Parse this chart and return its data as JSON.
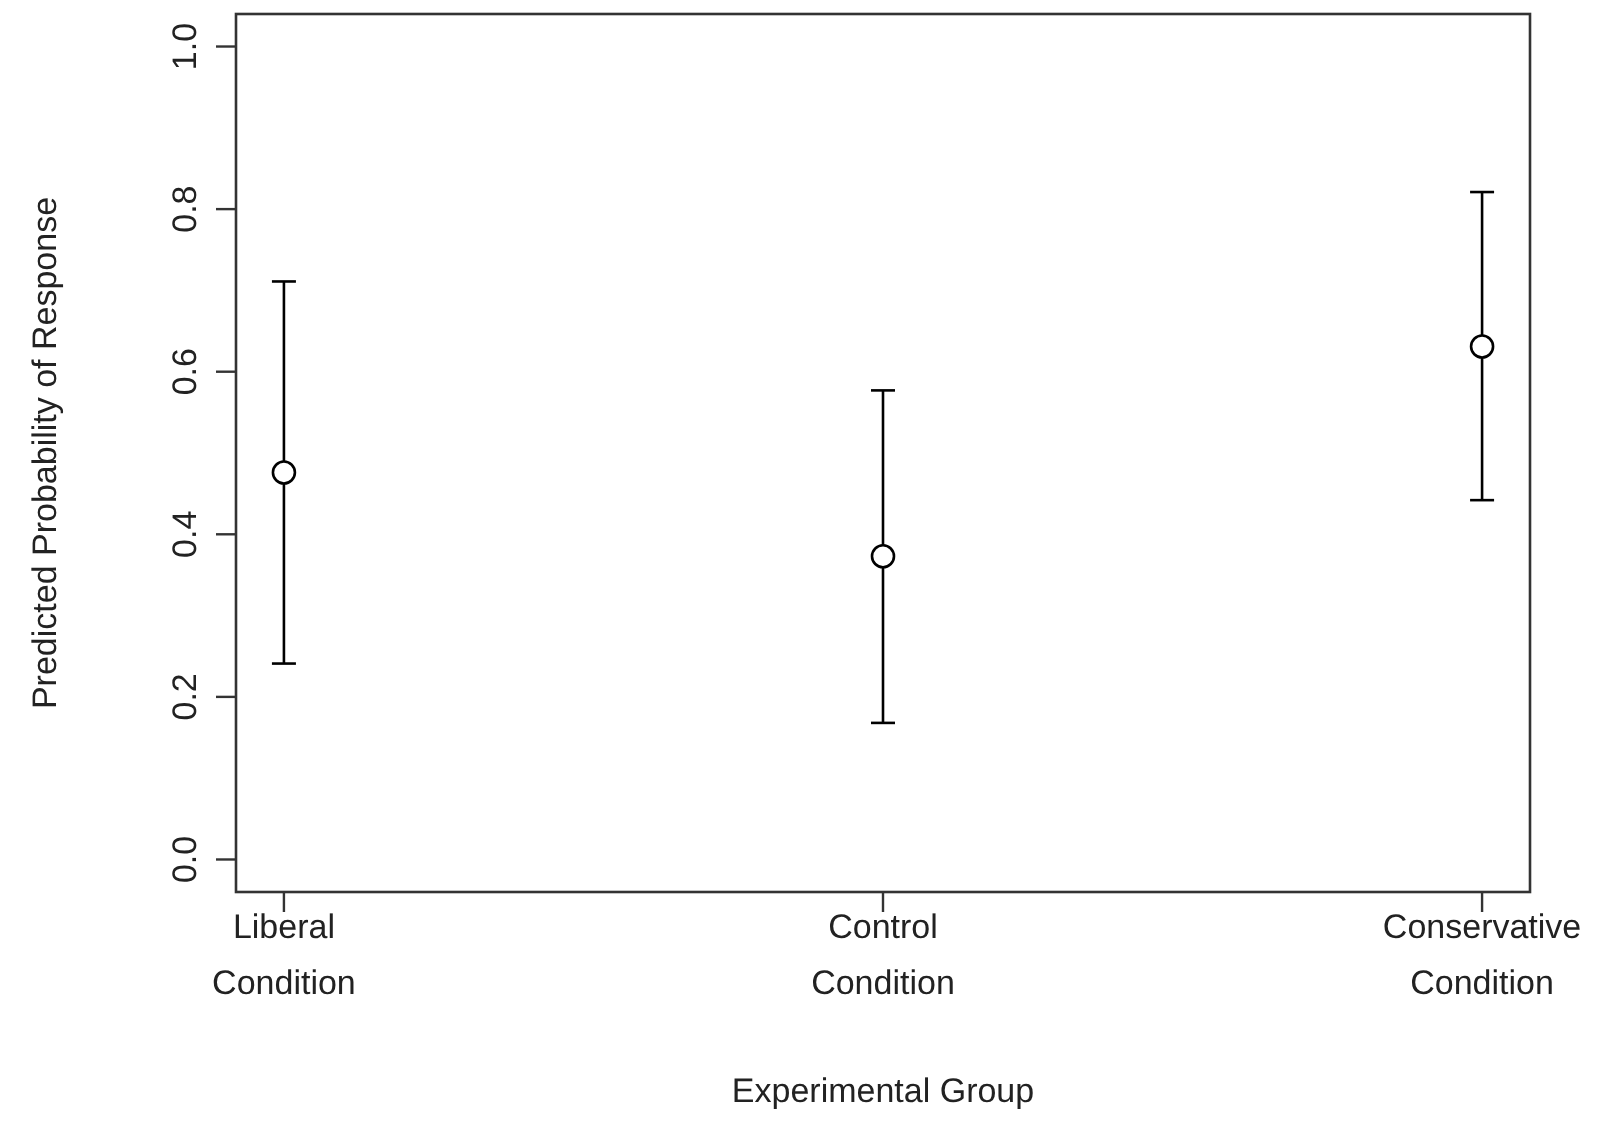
{
  "chart_data": {
    "type": "scatter",
    "xlabel": "Experimental Group",
    "ylabel": "Predicted Probability of Response",
    "categories": [
      "Liberal\nCondition",
      "Control\nCondition",
      "Conservative\nCondition"
    ],
    "values": [
      0.476,
      0.373,
      0.631
    ],
    "errors": [
      [
        0.241,
        0.711
      ],
      [
        0.168,
        0.577
      ],
      [
        0.442,
        0.821
      ]
    ],
    "color": "#000000",
    "marker": "circle",
    "ylim": [
      -0.04,
      1.04
    ],
    "yticks": [
      {
        "value": 0,
        "label": "0.0"
      },
      0.2,
      0.4,
      0.6,
      0.8,
      {
        "value": 1,
        "label": "1.0"
      }
    ]
  }
}
